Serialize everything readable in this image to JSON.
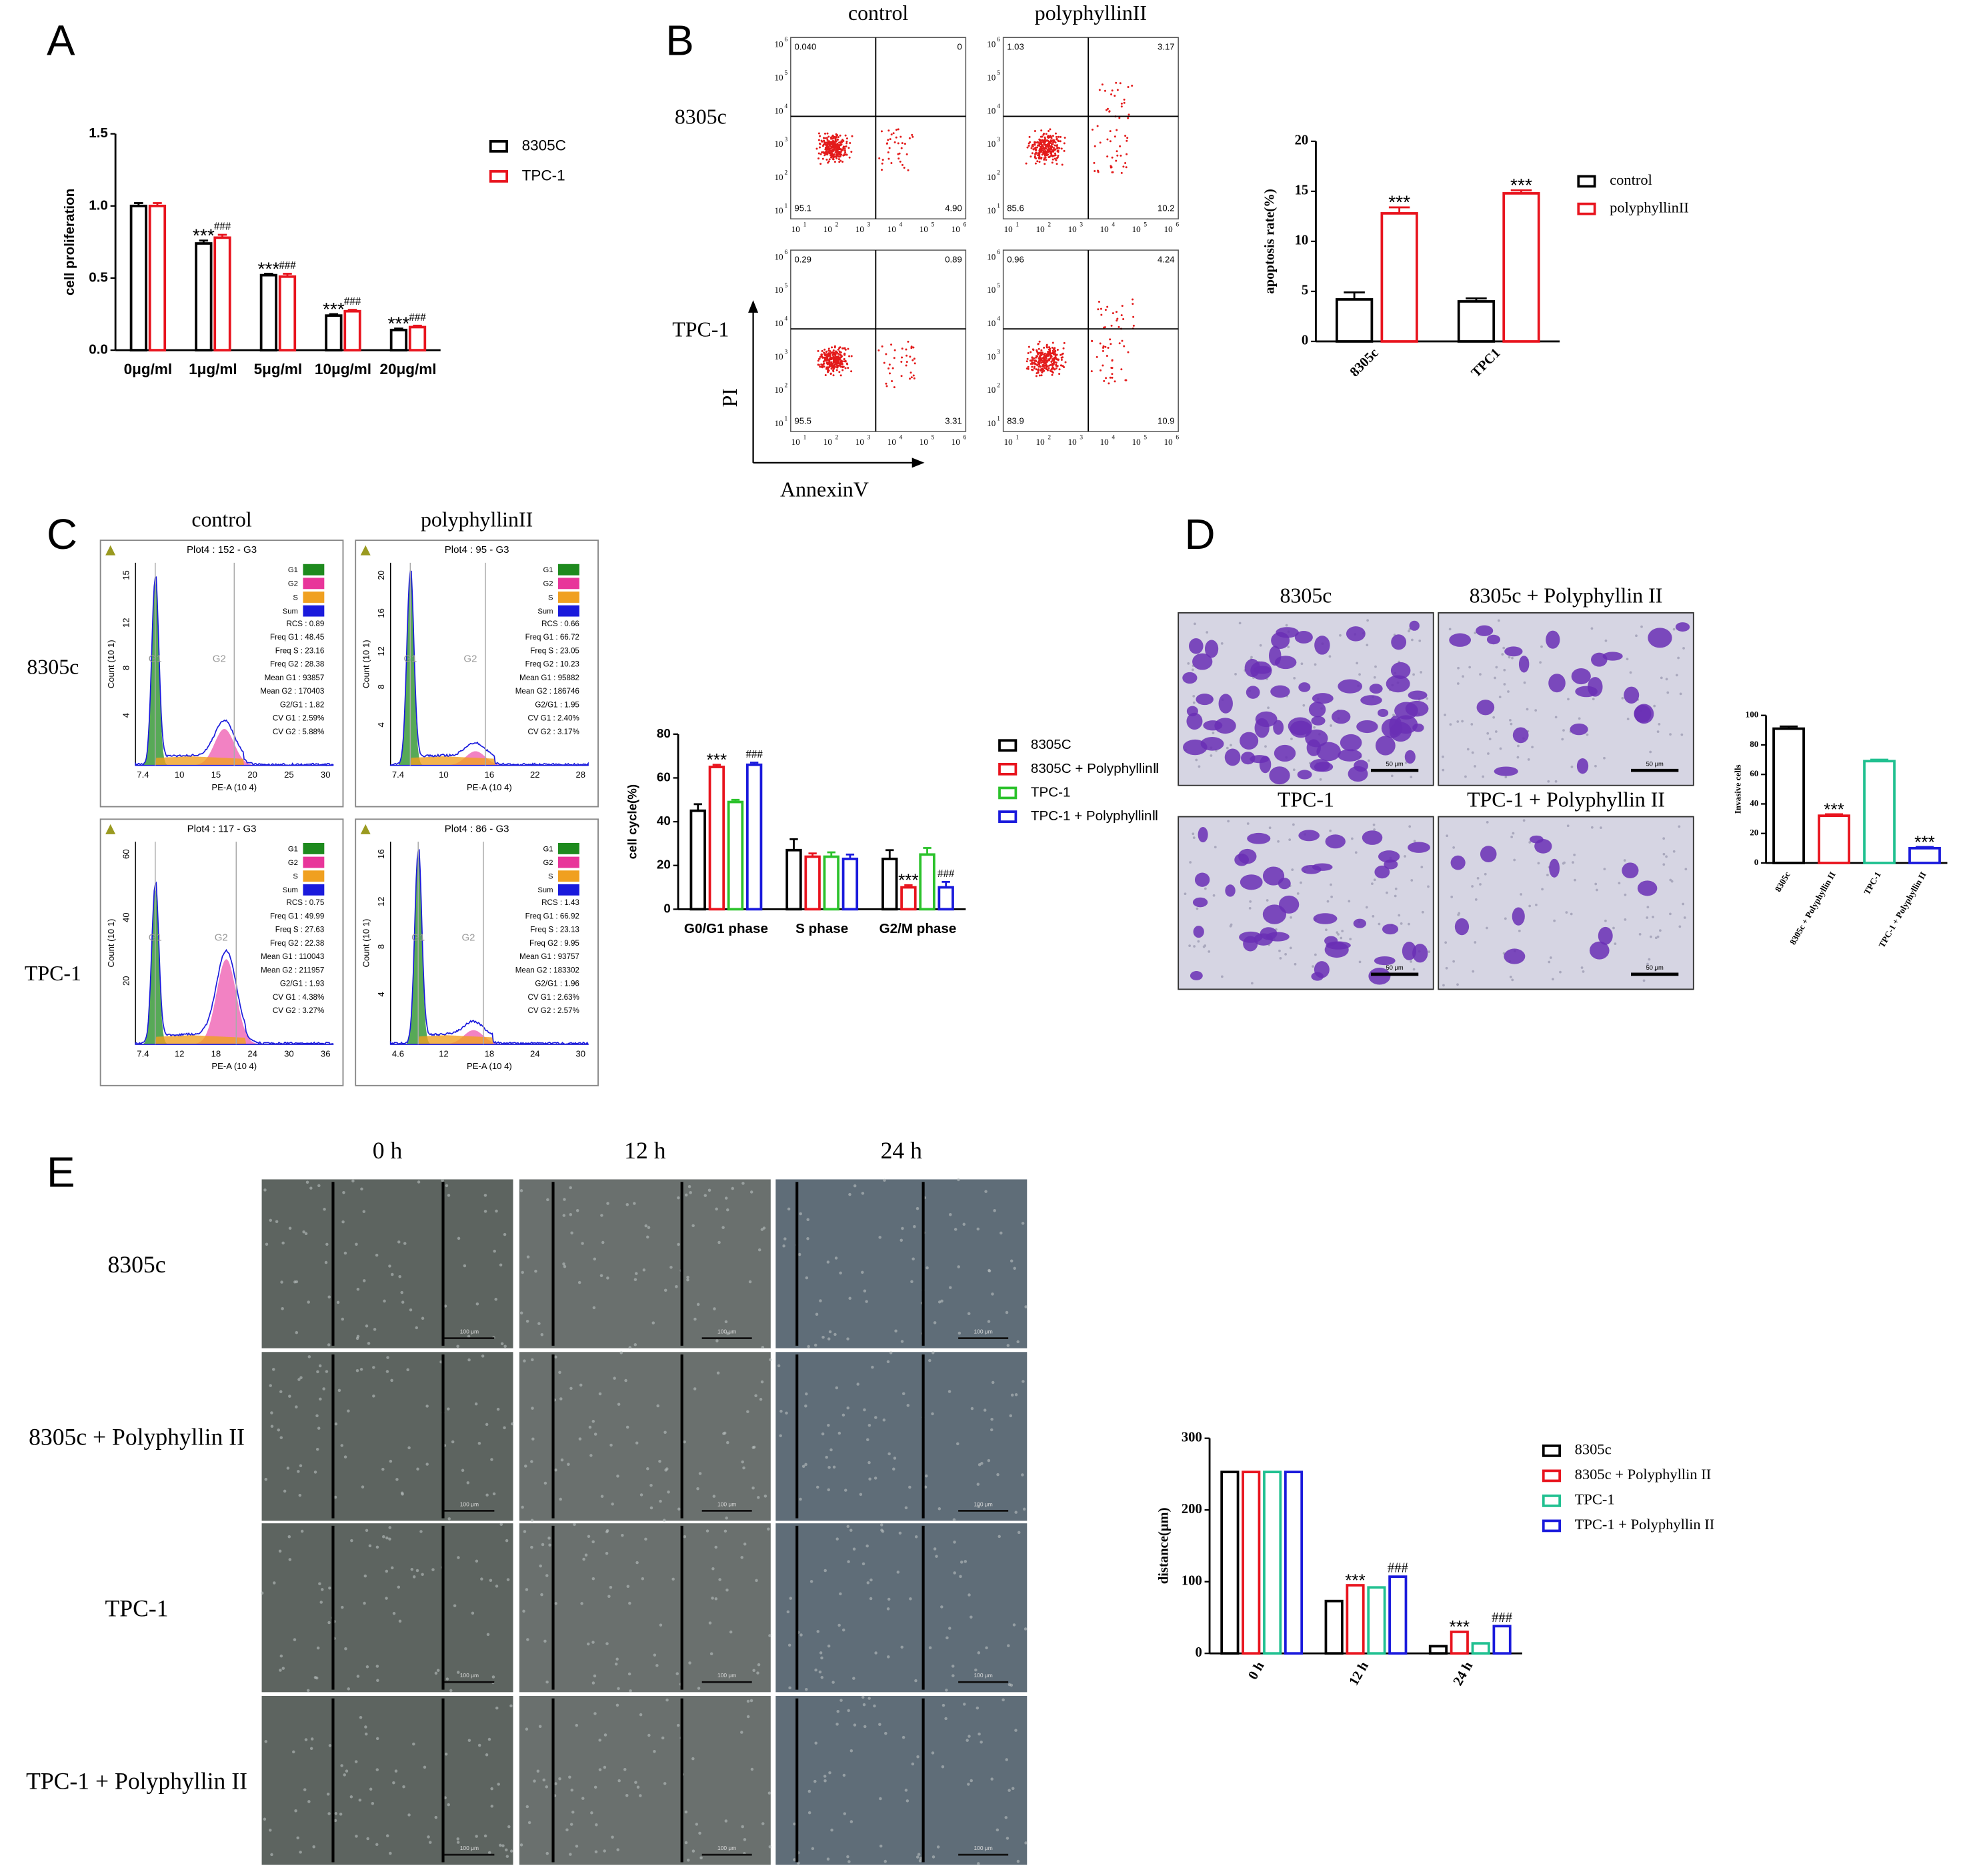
{
  "panel_labels": [
    "A",
    "B",
    "C",
    "D",
    "E"
  ],
  "chart_data": [
    {
      "type": "bar",
      "y_label": "cell proliferation",
      "categories": [
        "0μg/ml",
        "1μg/ml",
        "5μg/ml",
        "10μg/ml",
        "20μg/ml"
      ],
      "series": [
        {
          "name": "8305C",
          "color": "#000000",
          "values": [
            1.0,
            0.74,
            0.52,
            0.24,
            0.14
          ],
          "errors": [
            0.02,
            0.02,
            0.01,
            0.01,
            0.01
          ],
          "marks": [
            null,
            "***",
            "***",
            "***",
            "***"
          ]
        },
        {
          "name": "TPC-1",
          "color": "#e8141e",
          "values": [
            1.0,
            0.78,
            0.51,
            0.27,
            0.16
          ],
          "errors": [
            0.02,
            0.02,
            0.02,
            0.01,
            0.01
          ],
          "marks": [
            null,
            "###",
            "###",
            "###",
            "###"
          ]
        }
      ],
      "ylim": [
        0,
        1.5
      ],
      "yticks": [
        {
          "value": 0,
          "label": "0.0"
        },
        {
          "value": 0.5,
          "label": "0.5"
        },
        {
          "value": 1,
          "label": "1.0"
        },
        {
          "value": 1.5,
          "label": "1.5"
        }
      ]
    },
    {
      "type": "bar",
      "y_label": "apoptosis rate(%)",
      "categories": [
        "8305c",
        "TPC1"
      ],
      "series": [
        {
          "name": "control",
          "color": "#000000",
          "values": [
            4.2,
            4.0
          ],
          "errors": [
            0.7,
            0.3
          ],
          "marks": [
            null,
            null
          ]
        },
        {
          "name": "polyphyllinII",
          "color": "#e8141e",
          "values": [
            12.8,
            14.8
          ],
          "errors": [
            0.6,
            0.3
          ],
          "marks": [
            "***",
            "***"
          ]
        }
      ],
      "ylim": [
        0,
        20
      ],
      "yticks": [
        0,
        5,
        10,
        15,
        20
      ]
    },
    {
      "type": "bar",
      "y_label": "cell cycle(%)",
      "categories": [
        "G0/G1 phase",
        "S phase",
        "G2/M phase"
      ],
      "series": [
        {
          "name": "8305C",
          "color": "#000000",
          "values": [
            45,
            27,
            23
          ],
          "errors": [
            3,
            5,
            4
          ],
          "marks": [
            null,
            null,
            null
          ]
        },
        {
          "name": "8305C + PolyphyllinⅡ",
          "color": "#e8141e",
          "values": [
            65,
            24,
            10
          ],
          "errors": [
            1,
            1.5,
            1
          ],
          "marks": [
            "***",
            null,
            "***"
          ]
        },
        {
          "name": "TPC-1",
          "color": "#2bc22b",
          "values": [
            49,
            24,
            25
          ],
          "errors": [
            1,
            2,
            3
          ],
          "marks": [
            null,
            null,
            null
          ]
        },
        {
          "name": "TPC-1 + PolyphyllinⅡ",
          "color": "#1a1adc",
          "values": [
            66,
            23,
            10
          ],
          "errors": [
            1,
            2,
            2.5
          ],
          "marks": [
            "###",
            null,
            "###"
          ]
        }
      ],
      "ylim": [
        0,
        80
      ],
      "yticks": [
        0,
        20,
        40,
        60,
        80
      ]
    },
    {
      "type": "bar",
      "y_label": "Invasive cells",
      "categories": [
        "8305c",
        "8305c + Polyphyllin II",
        "TPC-1",
        "TPC-1 + Polyphyllin II"
      ],
      "values": [
        91,
        32,
        69,
        10
      ],
      "errors": [
        1.5,
        1,
        1,
        0.8
      ],
      "colors": [
        "#000000",
        "#e8141e",
        "#20c090",
        "#1a1adc"
      ],
      "marks": [
        null,
        "***",
        null,
        "***"
      ],
      "ylim": [
        0,
        100
      ],
      "yticks": [
        0,
        20,
        40,
        60,
        80,
        100
      ]
    },
    {
      "type": "bar",
      "y_label": "distance(μm)",
      "categories": [
        "0 h",
        "12 h",
        "24 h"
      ],
      "series": [
        {
          "name": "8305c",
          "color": "#000000",
          "values": [
            253,
            73,
            10
          ],
          "marks": [
            null,
            null,
            null
          ]
        },
        {
          "name": "8305c + Polyphyllin II",
          "color": "#e8141e",
          "values": [
            253,
            95,
            30
          ],
          "marks": [
            null,
            "***",
            "***"
          ]
        },
        {
          "name": "TPC-1",
          "color": "#20c090",
          "values": [
            253,
            92,
            14
          ],
          "marks": [
            null,
            null,
            null
          ]
        },
        {
          "name": "TPC-1 + Polyphyllin II",
          "color": "#1a1adc",
          "values": [
            253,
            107,
            38
          ],
          "marks": [
            null,
            "###",
            "###"
          ]
        }
      ],
      "ylim": [
        0,
        300
      ],
      "yticks": [
        0,
        100,
        200,
        300
      ]
    }
  ],
  "flow": {
    "columns": [
      "control",
      "polyphyllinII"
    ],
    "rows": [
      "8305c",
      "TPC-1"
    ],
    "y_label": "PI",
    "x_label": "AnnexinV",
    "tick_base": "10",
    "tick_exponents": [
      "1",
      "2",
      "3",
      "4",
      "5",
      "6"
    ],
    "plots": [
      {
        "quadrants": [
          "0.040",
          "0",
          "95.1",
          "4.90"
        ]
      },
      {
        "quadrants": [
          "1.03",
          "3.17",
          "85.6",
          "10.2"
        ]
      },
      {
        "quadrants": [
          "0.29",
          "0.89",
          "95.5",
          "3.31"
        ]
      },
      {
        "quadrants": [
          "0.96",
          "4.24",
          "83.9",
          "10.9"
        ]
      }
    ]
  },
  "cycle": {
    "columns": [
      "control",
      "polyphyllinII"
    ],
    "rows": [
      "8305c",
      "TPC-1"
    ],
    "y_label": "Count (10 1)",
    "x_label": "PE-A (10 4)",
    "legend": [
      "G1",
      "G2",
      "S",
      "Sum"
    ],
    "peak_labels": [
      "G1",
      "G2"
    ],
    "plots": [
      {
        "title": "Plot4 : 152 - G3",
        "stats": [
          "RCS : 0.89",
          "Freq G1 : 48.45",
          "Freq S : 23.16",
          "Freq G2 : 28.38",
          "Mean G1 : 93857",
          "Mean G2 : 170403",
          "G2/G1 : 1.82",
          "CV G1 : 2.59%",
          "CV G2 : 5.88%"
        ],
        "xticks": [
          "7.4",
          "10",
          "15",
          "20",
          "25",
          "30"
        ],
        "yticks": [
          "4",
          "8",
          "12",
          "15"
        ]
      },
      {
        "title": "Plot4 : 95 - G3",
        "stats": [
          "RCS : 0.66",
          "Freq G1 : 66.72",
          "Freq S : 23.05",
          "Freq G2 : 10.23",
          "Mean G1 : 95882",
          "Mean G2 : 186746",
          "G2/G1 : 1.95",
          "CV G1 : 2.40%",
          "CV G2 : 3.17%"
        ],
        "xticks": [
          "7.4",
          "10",
          "16",
          "22",
          "28"
        ],
        "yticks": [
          "4",
          "8",
          "12",
          "16",
          "20"
        ]
      },
      {
        "title": "Plot4 : 117 - G3",
        "stats": [
          "RCS : 0.75",
          "Freq G1 : 49.99",
          "Freq S : 27.63",
          "Freq G2 : 22.38",
          "Mean G1 : 110043",
          "Mean G2 : 211957",
          "G2/G1 : 1.93",
          "CV G1 : 4.38%",
          "CV G2 : 3.27%"
        ],
        "xticks": [
          "7.4",
          "12",
          "18",
          "24",
          "30",
          "36"
        ],
        "yticks": [
          "20",
          "40",
          "60"
        ]
      },
      {
        "title": "Plot4 : 86 - G3",
        "stats": [
          "RCS : 1.43",
          "Freq G1 : 66.92",
          "Freq S : 23.13",
          "Freq G2 : 9.95",
          "Mean G1 : 93757",
          "Mean G2 : 183302",
          "G2/G1 : 1.96",
          "CV G1 : 2.63%",
          "CV G2 : 2.57%"
        ],
        "xticks": [
          "4.6",
          "12",
          "18",
          "24",
          "30"
        ],
        "yticks": [
          "4",
          "8",
          "12",
          "16"
        ]
      }
    ]
  },
  "invasion": {
    "titles": [
      "8305c",
      "8305c + Polyphyllin II",
      "TPC-1",
      "TPC-1 + Polyphyllin II"
    ],
    "scale_label": "50 μm"
  },
  "wound": {
    "columns": [
      "0 h",
      "12 h",
      "24 h"
    ],
    "rows": [
      "8305c",
      "8305c + Polyphyllin II",
      "TPC-1",
      "TPC-1 + Polyphyllin II"
    ],
    "scale_label": "100 μm"
  }
}
